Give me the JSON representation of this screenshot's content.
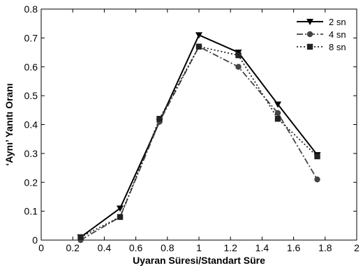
{
  "chart_data": {
    "type": "line",
    "title": "",
    "xlabel": "Uyaran Süresi/Standart Süre",
    "ylabel": "‘Aynı’ Yanıtı Oranı",
    "xlim": [
      0,
      2
    ],
    "ylim": [
      0,
      0.8
    ],
    "x_ticks": [
      "0",
      "0.2",
      "0.4",
      "0.6",
      "0.8",
      "1",
      "1.2",
      "1.4",
      "1.6",
      "1.8",
      "2"
    ],
    "y_ticks": [
      "0",
      "0.1",
      "0.2",
      "0.3",
      "0.4",
      "0.5",
      "0.6",
      "0.7",
      "0.8"
    ],
    "grid": false,
    "legend_position": "top-right",
    "x": [
      0.25,
      0.5,
      0.75,
      1.0,
      1.25,
      1.5,
      1.75
    ],
    "series": [
      {
        "name": "2 sn",
        "values": [
          0.01,
          0.11,
          0.41,
          0.71,
          0.65,
          0.47,
          0.295
        ],
        "line": "solid",
        "marker": "triangle-down",
        "color": "#000000"
      },
      {
        "name": "4 sn",
        "values": [
          0.0,
          0.08,
          0.41,
          0.67,
          0.6,
          0.44,
          0.21
        ],
        "line": "dash-dot",
        "marker": "circle",
        "color": "#444444"
      },
      {
        "name": "8 sn",
        "values": [
          0.01,
          0.08,
          0.42,
          0.67,
          0.64,
          0.42,
          0.29
        ],
        "line": "dotted",
        "marker": "square",
        "color": "#222222"
      }
    ]
  }
}
